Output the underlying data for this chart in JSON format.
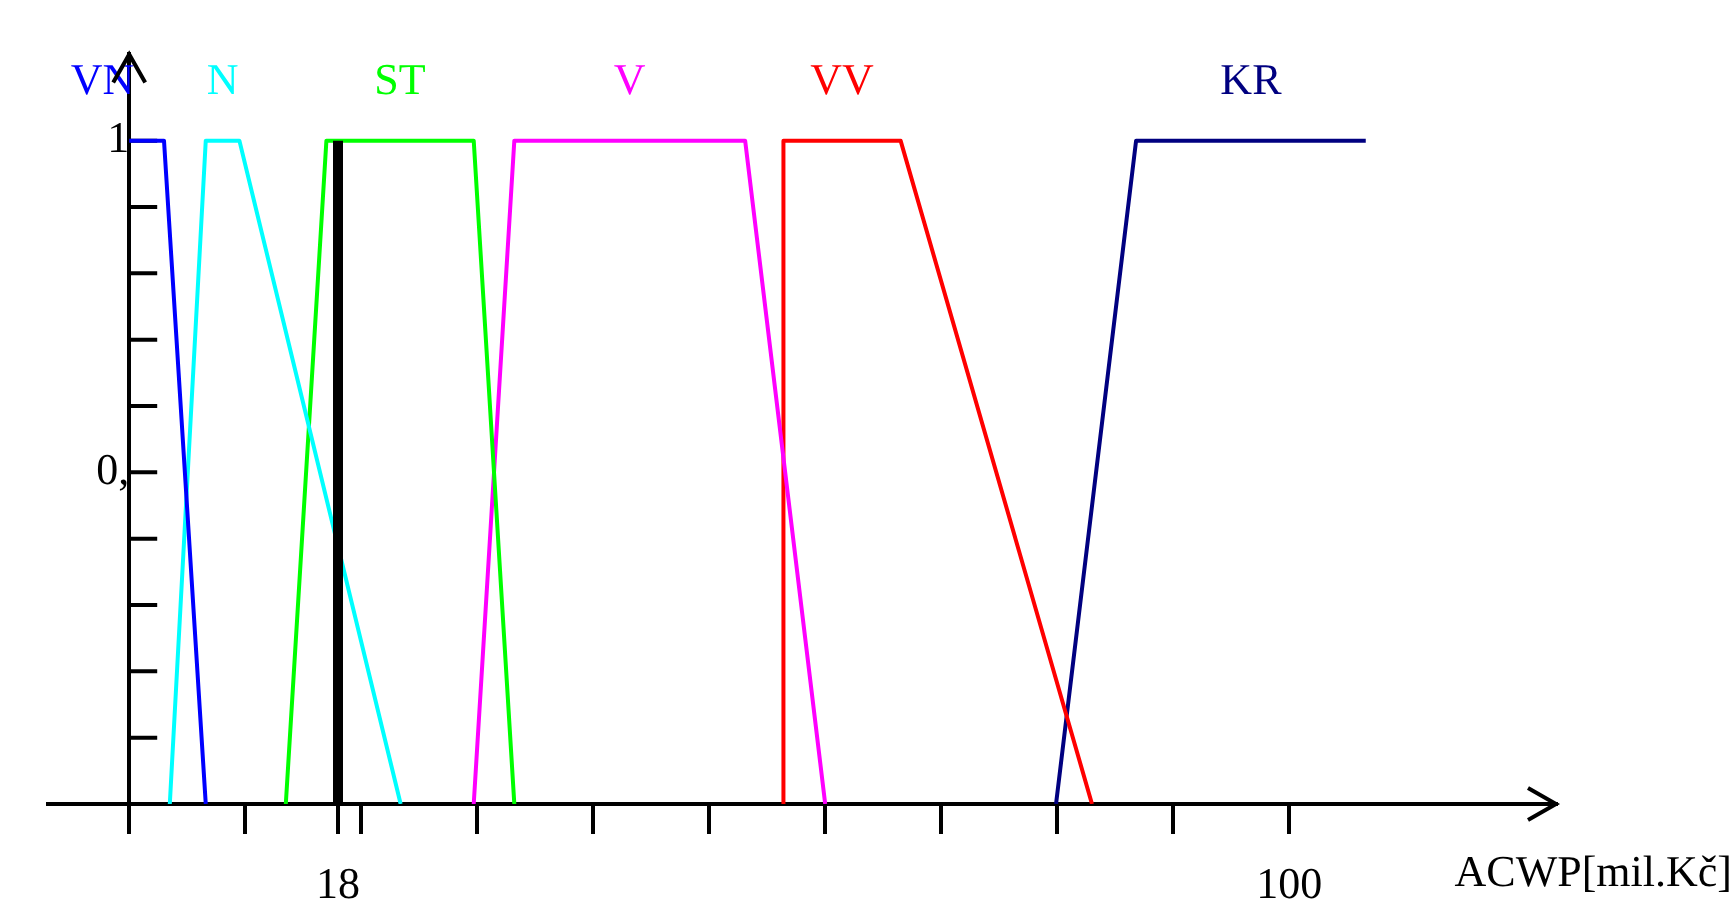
{
  "chart_data": {
    "type": "line",
    "xlabel": "ACWP[mil.Kč]",
    "xlim": [
      -7,
      123
    ],
    "ylim": [
      0,
      1.13
    ],
    "xticks": [
      {
        "value": 0,
        "label": null
      },
      {
        "value": 10,
        "label": null
      },
      {
        "value": 18,
        "label": "18"
      },
      {
        "value": 20,
        "label": null
      },
      {
        "value": 30,
        "label": null
      },
      {
        "value": 40,
        "label": null
      },
      {
        "value": 50,
        "label": null
      },
      {
        "value": 60,
        "label": null
      },
      {
        "value": 70,
        "label": null
      },
      {
        "value": 80,
        "label": null
      },
      {
        "value": 90,
        "label": null
      },
      {
        "value": 100,
        "label": "100"
      }
    ],
    "yticks": [
      {
        "value": 0.1,
        "label": null
      },
      {
        "value": 0.2,
        "label": null
      },
      {
        "value": 0.3,
        "label": null
      },
      {
        "value": 0.4,
        "label": null
      },
      {
        "value": 0.5,
        "label": "0,"
      },
      {
        "value": 0.6,
        "label": null
      },
      {
        "value": 0.7,
        "label": null
      },
      {
        "value": 0.8,
        "label": null
      },
      {
        "value": 0.9,
        "label": null
      },
      {
        "value": 1,
        "label": "1"
      }
    ],
    "grid": false,
    "legend": false,
    "marker": "none",
    "line_style": "solid",
    "series": [
      {
        "name": "VN",
        "color": "#0000ff",
        "x": [
          0,
          3,
          6.6
        ],
        "values": [
          1,
          1,
          0
        ]
      },
      {
        "name": "N",
        "color": "#00ffff",
        "x": [
          3.5,
          6.6,
          9.5,
          23.4
        ],
        "values": [
          0,
          1,
          1,
          0
        ]
      },
      {
        "name": "ST",
        "color": "#00ff00",
        "x": [
          13.5,
          17,
          29.7,
          33.2
        ],
        "values": [
          0,
          1,
          1,
          0
        ]
      },
      {
        "name": "V",
        "color": "#ff00ff",
        "x": [
          29.7,
          33.2,
          53.1,
          60
        ],
        "values": [
          0,
          1,
          1,
          0
        ]
      },
      {
        "name": "VV",
        "color": "#ff0000",
        "x": [
          56.4,
          56.4,
          66.5,
          83
        ],
        "values": [
          0,
          1,
          1,
          0
        ]
      },
      {
        "name": "KR",
        "color": "#000080",
        "x": [
          79.9,
          86.8,
          106.6
        ],
        "values": [
          0,
          1,
          1
        ]
      }
    ],
    "ref_lines": [
      {
        "axis": "x",
        "value": 18,
        "color": "#000000"
      }
    ]
  }
}
